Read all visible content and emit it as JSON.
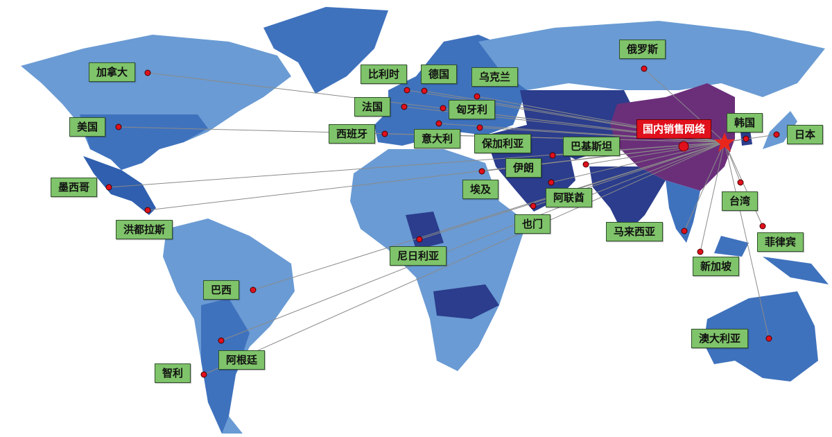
{
  "hub": {
    "label": "国内销售网络",
    "color": "#e0101c"
  },
  "colors": {
    "land_light": "#6a9bd4",
    "land_mid": "#3f72bd",
    "land_dark": "#2b3d8c",
    "china": "#6b2f7a",
    "label_bg": "#7fc36a",
    "line": "#8a8a8a"
  },
  "countries": [
    {
      "name": "加拿大"
    },
    {
      "name": "美国"
    },
    {
      "name": "墨西哥"
    },
    {
      "name": "洪都拉斯"
    },
    {
      "name": "巴西"
    },
    {
      "name": "阿根廷"
    },
    {
      "name": "智利"
    },
    {
      "name": "比利时"
    },
    {
      "name": "德国"
    },
    {
      "name": "乌克兰"
    },
    {
      "name": "法国"
    },
    {
      "name": "匈牙利"
    },
    {
      "name": "西班牙"
    },
    {
      "name": "意大利"
    },
    {
      "name": "保加利亚"
    },
    {
      "name": "巴基斯坦"
    },
    {
      "name": "伊朗"
    },
    {
      "name": "埃及"
    },
    {
      "name": "阿联酋"
    },
    {
      "name": "也门"
    },
    {
      "name": "尼日利亚"
    },
    {
      "name": "马来西亚"
    },
    {
      "name": "新加坡"
    },
    {
      "name": "台湾"
    },
    {
      "name": "菲律宾"
    },
    {
      "name": "澳大利亚"
    },
    {
      "name": "俄罗斯"
    },
    {
      "name": "韩国"
    },
    {
      "name": "日本"
    }
  ]
}
